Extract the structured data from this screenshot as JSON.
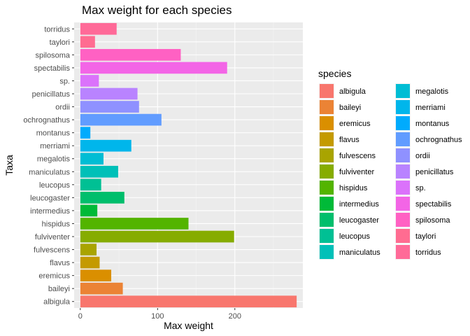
{
  "chart_data": {
    "type": "bar",
    "orientation": "horizontal",
    "title": "Max weight for each species",
    "xlabel": "Max weight",
    "ylabel": "Taxa",
    "xlim": [
      -8,
      288
    ],
    "xticks": [
      0,
      100,
      200
    ],
    "grid": true,
    "legend_title": "species",
    "legend_position": "right",
    "categories": [
      "albigula",
      "baileyi",
      "eremicus",
      "flavus",
      "fulvescens",
      "fulviventer",
      "hispidus",
      "intermedius",
      "leucogaster",
      "leucopus",
      "maniculatus",
      "megalotis",
      "merriami",
      "montanus",
      "ochrognathus",
      "ordii",
      "penicillatus",
      "sp.",
      "spectabilis",
      "spilosoma",
      "taylori",
      "torridus"
    ],
    "values": [
      280,
      55,
      40,
      25,
      21,
      199,
      140,
      22,
      57,
      27,
      49,
      30,
      66,
      13,
      105,
      76,
      74,
      24,
      190,
      130,
      19,
      47
    ],
    "colors": [
      "#F8766D",
      "#EB8335",
      "#DA8F00",
      "#C49A00",
      "#A9A400",
      "#86AC00",
      "#53B400",
      "#00BA38",
      "#00BE6C",
      "#00C094",
      "#00C0B8",
      "#00BDD4",
      "#00B6EB",
      "#00ABFD",
      "#619CFF",
      "#8F91FF",
      "#B983FF",
      "#DB72FB",
      "#F365E6",
      "#FF61C3",
      "#FF6C91",
      "#FF6A98"
    ]
  }
}
